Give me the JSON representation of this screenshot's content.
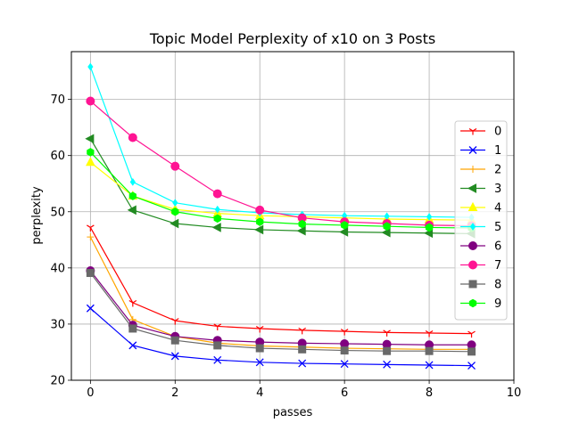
{
  "chart_data": {
    "type": "line",
    "title": "Topic Model Perplexity of x10 on 3 Posts",
    "xlabel": "passes",
    "ylabel": "perplexity",
    "xlim": [
      -0.45,
      10
    ],
    "ylim": [
      20,
      78.5
    ],
    "x_ticks": [
      0,
      2,
      4,
      6,
      8,
      10
    ],
    "y_ticks": [
      20,
      30,
      40,
      50,
      60,
      70
    ],
    "grid": true,
    "legend_position": "right",
    "x": [
      0,
      1,
      2,
      3,
      4,
      5,
      6,
      7,
      8,
      9
    ],
    "series": [
      {
        "name": "0",
        "color": "#ff0000",
        "marker": "tri_down",
        "values": [
          47.2,
          33.8,
          30.6,
          29.6,
          29.2,
          28.9,
          28.7,
          28.5,
          28.4,
          28.3
        ]
      },
      {
        "name": "1",
        "color": "#0000ff",
        "marker": "x",
        "values": [
          32.8,
          26.2,
          24.3,
          23.6,
          23.2,
          23.0,
          22.9,
          22.8,
          22.7,
          22.6
        ]
      },
      {
        "name": "2",
        "color": "#ffa500",
        "marker": "thin_plus",
        "values": [
          45.5,
          30.8,
          27.8,
          26.6,
          26.1,
          25.9,
          25.7,
          25.6,
          25.5,
          25.5
        ]
      },
      {
        "name": "3",
        "color": "#228b22",
        "marker": "tri_left",
        "values": [
          63.0,
          50.3,
          47.9,
          47.2,
          46.8,
          46.6,
          46.4,
          46.3,
          46.2,
          46.1
        ]
      },
      {
        "name": "4",
        "color": "#ffff00",
        "marker": "tri_up",
        "values": [
          58.8,
          52.8,
          50.4,
          49.7,
          49.3,
          49.1,
          48.9,
          48.7,
          48.6,
          48.5
        ]
      },
      {
        "name": "5",
        "color": "#00ffff",
        "marker": "diamond",
        "values": [
          75.8,
          55.3,
          51.6,
          50.4,
          49.8,
          49.5,
          49.3,
          49.2,
          49.1,
          49.0
        ]
      },
      {
        "name": "6",
        "color": "#800080",
        "marker": "circle",
        "values": [
          39.5,
          29.8,
          27.8,
          27.1,
          26.8,
          26.6,
          26.5,
          26.4,
          26.3,
          26.3
        ]
      },
      {
        "name": "7",
        "color": "#ff1493",
        "marker": "circle",
        "values": [
          69.7,
          63.2,
          58.1,
          53.2,
          50.3,
          48.9,
          48.2,
          47.9,
          47.6,
          47.5
        ]
      },
      {
        "name": "8",
        "color": "#696969",
        "marker": "square",
        "values": [
          39.1,
          29.2,
          27.1,
          26.2,
          25.7,
          25.5,
          25.3,
          25.2,
          25.2,
          25.1
        ]
      },
      {
        "name": "9",
        "color": "#00ff00",
        "marker": "hexagon",
        "values": [
          60.6,
          52.8,
          50.0,
          48.8,
          48.2,
          47.8,
          47.6,
          47.4,
          47.2,
          47.1
        ]
      }
    ]
  }
}
